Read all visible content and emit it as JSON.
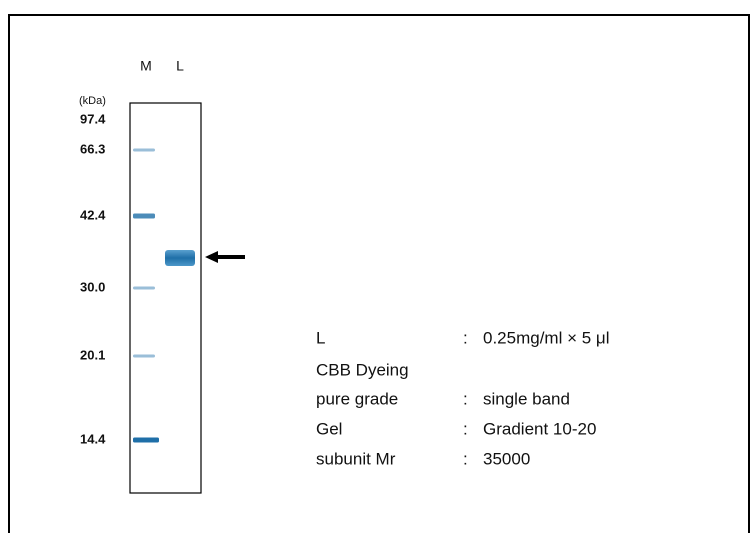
{
  "gel": {
    "unit_label": "(kDa)",
    "lane_labels": [
      "M",
      "L"
    ],
    "markers": [
      "97.4",
      "66.3",
      "42.4",
      "30.0",
      "20.1",
      "14.4"
    ]
  },
  "info": [
    {
      "key": "L",
      "sep": ":",
      "value": "0.25mg/ml × 5 μl"
    },
    {
      "key": "CBB Dyeing"
    },
    {
      "key": "pure grade",
      "sep": ":",
      "value": "single band"
    },
    {
      "key": "Gel",
      "sep": ":",
      "value": "Gradient 10-20"
    },
    {
      "key": "subunit Mr",
      "sep": ":",
      "value": "35000"
    }
  ]
}
